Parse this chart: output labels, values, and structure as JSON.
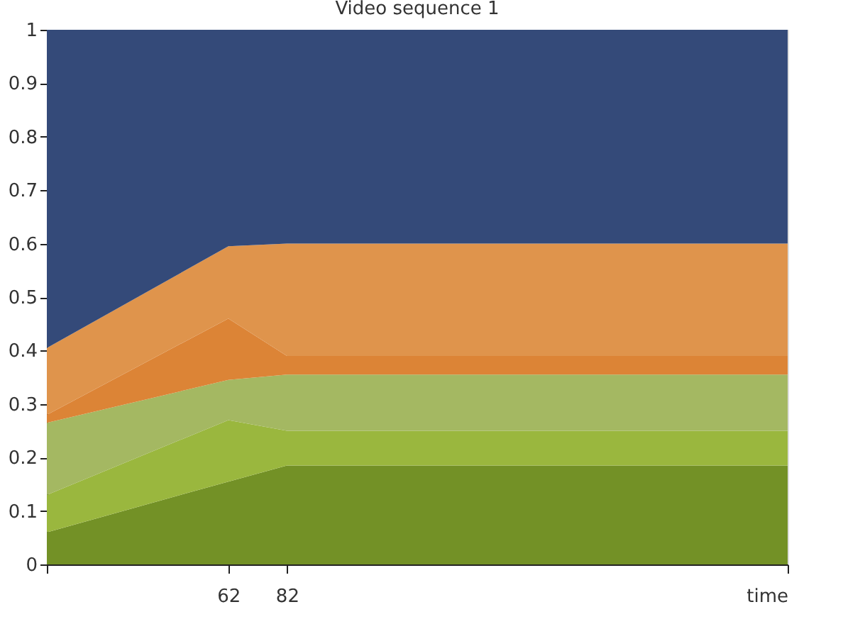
{
  "chart_data": {
    "type": "area",
    "title": "Video sequence 1",
    "stacked": true,
    "grid": false,
    "legend": false,
    "x": [
      0,
      62,
      82,
      253
    ],
    "xlim": [
      0,
      253
    ],
    "xticks": [
      {
        "value": 0,
        "label": null
      },
      62,
      82,
      {
        "value": 253,
        "label": "time"
      }
    ],
    "ylim": [
      0,
      1
    ],
    "yticks": [
      0,
      0.1,
      0.2,
      0.3,
      0.4,
      0.5,
      0.6,
      0.7,
      0.8,
      0.9,
      1
    ],
    "series": [
      {
        "color": "#739126",
        "values": [
          0.06,
          0.155,
          0.185,
          0.185
        ]
      },
      {
        "color": "#9ab73e",
        "values": [
          0.07,
          0.115,
          0.065,
          0.065
        ]
      },
      {
        "color": "#a4b862",
        "values": [
          0.135,
          0.075,
          0.105,
          0.105
        ]
      },
      {
        "color": "#dc8436",
        "values": [
          0.015,
          0.115,
          0.035,
          0.035
        ]
      },
      {
        "color": "#df944c",
        "values": [
          0.125,
          0.135,
          0.21,
          0.21
        ]
      },
      {
        "color": "#344a79",
        "values": [
          0.595,
          0.405,
          0.4,
          0.4
        ]
      }
    ]
  }
}
